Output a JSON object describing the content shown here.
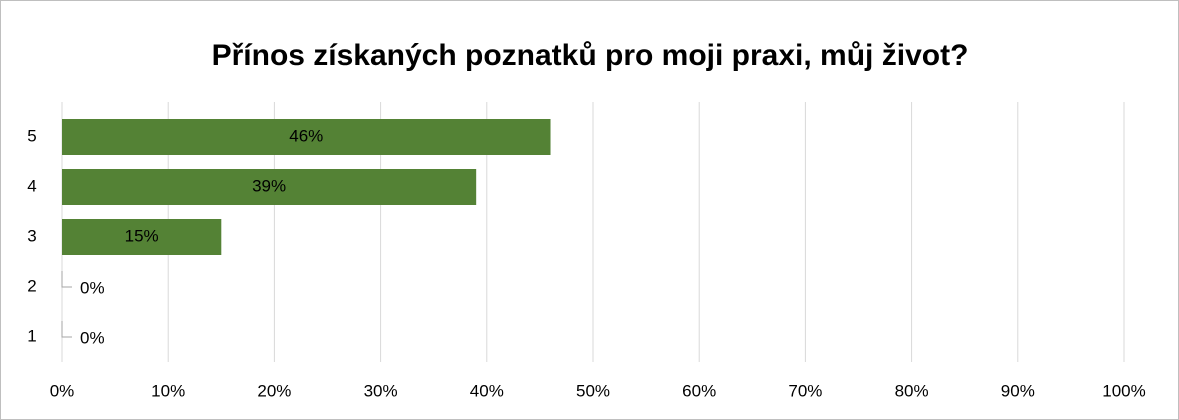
{
  "chart_data": {
    "type": "hbar",
    "title": "Přínos získaných poznatků pro moji praxi, můj život?",
    "categories": [
      "5",
      "4",
      "3",
      "2",
      "1"
    ],
    "values": [
      46,
      39,
      15,
      0,
      0
    ],
    "value_labels": [
      "46%",
      "39%",
      "15%",
      "0%",
      "0%"
    ],
    "color": "#548235",
    "xlim": [
      0,
      100
    ],
    "xticks": [
      {
        "value": 0,
        "label": "0%"
      },
      {
        "value": 10,
        "label": "10%"
      },
      {
        "value": 20,
        "label": "20%"
      },
      {
        "value": 30,
        "label": "30%"
      },
      {
        "value": 40,
        "label": "40%"
      },
      {
        "value": 50,
        "label": "50%"
      },
      {
        "value": 60,
        "label": "60%"
      },
      {
        "value": 70,
        "label": "70%"
      },
      {
        "value": 80,
        "label": "80%"
      },
      {
        "value": 90,
        "label": "90%"
      },
      {
        "value": 100,
        "label": "100%"
      }
    ],
    "grid": true
  }
}
